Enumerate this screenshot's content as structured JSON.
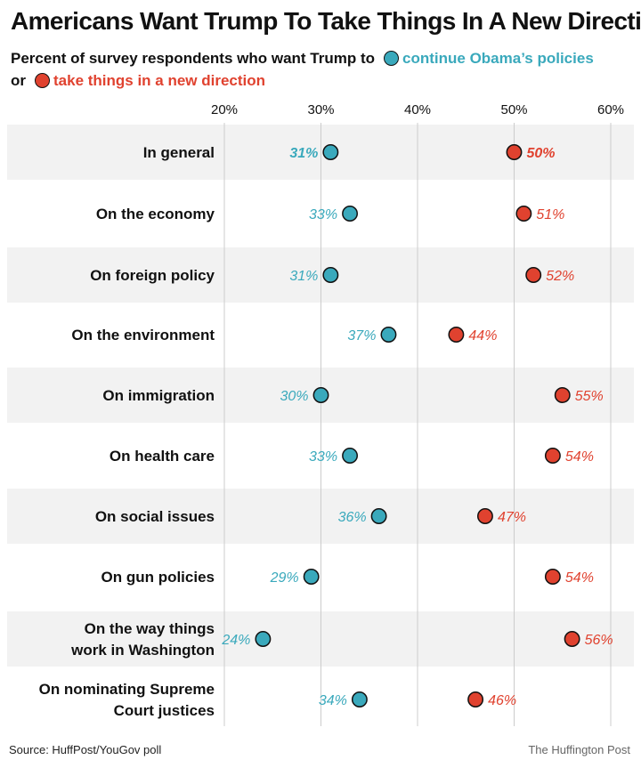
{
  "title": "Americans Want Trump To Take Things In A New Direction",
  "subtitle": {
    "prefix": "Percent of survey respondents who want Trump to",
    "series_blue": "continue Obama’s policies",
    "connector": "or",
    "series_red": "take things in a new direction"
  },
  "colors": {
    "blue": "#3aa9bc",
    "red": "#e0422f",
    "stripe": "#f2f2f2",
    "grid": "#cccccc"
  },
  "chart_data": {
    "type": "scatter",
    "subtype": "dot-plot",
    "xlim": [
      20,
      60
    ],
    "xticks": [
      "20%",
      "30%",
      "40%",
      "50%",
      "60%"
    ],
    "xtick_values": [
      20,
      30,
      40,
      50,
      60
    ],
    "axis_position": "top",
    "grid": true,
    "categories": [
      "In general",
      "On the economy",
      "On foreign policy",
      "On the environment",
      "On immigration",
      "On health care",
      "On social issues",
      "On gun policies",
      "On the way things work in Washington",
      "On nominating Supreme Court justices"
    ],
    "category_lines": [
      [
        "In general"
      ],
      [
        "On the economy"
      ],
      [
        "On foreign policy"
      ],
      [
        "On the environment"
      ],
      [
        "On immigration"
      ],
      [
        "On health care"
      ],
      [
        "On social issues"
      ],
      [
        "On gun policies"
      ],
      [
        "On the way things",
        "work in Washington"
      ],
      [
        "On nominating Supreme",
        "Court justices"
      ]
    ],
    "series": [
      {
        "name": "continue Obama’s policies",
        "color": "#3aa9bc",
        "values": [
          31,
          33,
          31,
          37,
          30,
          33,
          36,
          29,
          24,
          34
        ],
        "labels": [
          "31%",
          "33%",
          "31%",
          "37%",
          "30%",
          "33%",
          "36%",
          "29%",
          "24%",
          "34%"
        ]
      },
      {
        "name": "take things in a new direction",
        "color": "#e0422f",
        "values": [
          50,
          51,
          52,
          44,
          55,
          54,
          47,
          54,
          56,
          46
        ],
        "labels": [
          "50%",
          "51%",
          "52%",
          "44%",
          "55%",
          "54%",
          "47%",
          "54%",
          "56%",
          "46%"
        ]
      }
    ],
    "highlighted_row": "In general"
  },
  "footer": {
    "source": "Source: HuffPost/YouGov poll",
    "credit": "The Huffington Post"
  }
}
